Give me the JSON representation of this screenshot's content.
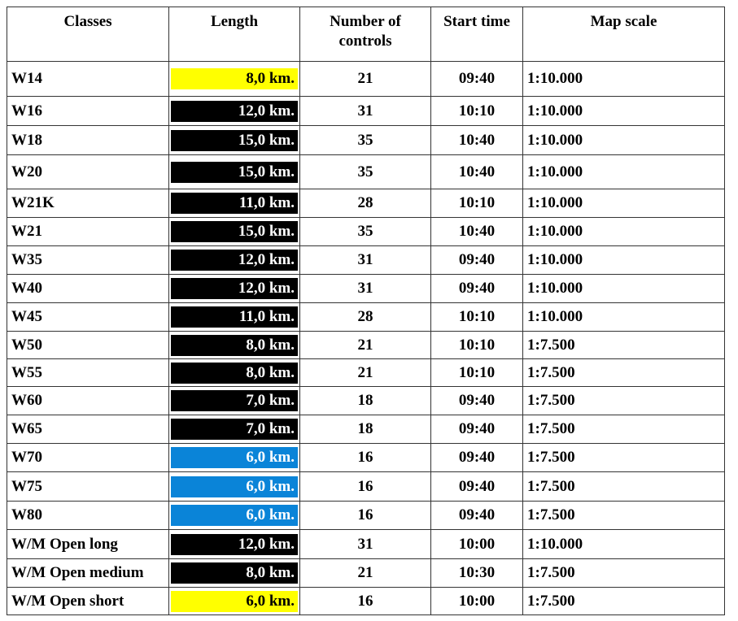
{
  "headers": [
    "Classes",
    "Length",
    "Number of controls",
    "Start time",
    "Map scale"
  ],
  "colors": {
    "yellow": "#ffff00",
    "black": "#000000",
    "blue": "#0a84d8"
  },
  "rows": [
    {
      "cls": "W14",
      "len": "8,0 km.",
      "color": "yellow",
      "n": "21",
      "t": "09:40",
      "s": "1:10.000"
    },
    {
      "cls": "W16",
      "len": "12,0 km.",
      "color": "black",
      "n": "31",
      "t": "10:10",
      "s": "1:10.000"
    },
    {
      "cls": "W18",
      "len": "15,0 km.",
      "color": "black",
      "n": "35",
      "t": "10:40",
      "s": "1:10.000"
    },
    {
      "cls": "W20",
      "len": "15,0 km.",
      "color": "black",
      "n": "35",
      "t": "10:40",
      "s": "1:10.000"
    },
    {
      "cls": "W21K",
      "len": "11,0 km.",
      "color": "black",
      "n": "28",
      "t": "10:10",
      "s": "1:10.000"
    },
    {
      "cls": "W21",
      "len": "15,0 km.",
      "color": "black",
      "n": "35",
      "t": "10:40",
      "s": "1:10.000"
    },
    {
      "cls": "W35",
      "len": "12,0 km.",
      "color": "black",
      "n": "31",
      "t": "09:40",
      "s": "1:10.000"
    },
    {
      "cls": "W40",
      "len": "12,0 km.",
      "color": "black",
      "n": "31",
      "t": "09:40",
      "s": "1:10.000"
    },
    {
      "cls": "W45",
      "len": "11,0 km.",
      "color": "black",
      "n": "28",
      "t": "10:10",
      "s": "1:10.000"
    },
    {
      "cls": "W50",
      "len": "8,0 km.",
      "color": "black",
      "n": "21",
      "t": "10:10",
      "s": "1:7.500"
    },
    {
      "cls": "W55",
      "len": "8,0 km.",
      "color": "black",
      "n": "21",
      "t": "10:10",
      "s": "1:7.500"
    },
    {
      "cls": "W60",
      "len": "7,0 km.",
      "color": "black",
      "n": "18",
      "t": "09:40",
      "s": "1:7.500"
    },
    {
      "cls": "W65",
      "len": "7,0 km.",
      "color": "black",
      "n": "18",
      "t": "09:40",
      "s": "1:7.500"
    },
    {
      "cls": "W70",
      "len": "6,0 km.",
      "color": "blue",
      "n": "16",
      "t": "09:40",
      "s": "1:7.500"
    },
    {
      "cls": "W75",
      "len": "6,0 km.",
      "color": "blue",
      "n": "16",
      "t": "09:40",
      "s": "1:7.500"
    },
    {
      "cls": "W80",
      "len": "6,0 km.",
      "color": "blue",
      "n": "16",
      "t": "09:40",
      "s": "1:7.500"
    },
    {
      "cls": "W/M Open long",
      "len": "12,0 km.",
      "color": "black",
      "n": "31",
      "t": "10:00",
      "s": "1:10.000"
    },
    {
      "cls": "W/M Open medium",
      "len": "8,0 km.",
      "color": "black",
      "n": "21",
      "t": "10:30",
      "s": "1:7.500"
    },
    {
      "cls": "W/M Open short",
      "len": "6,0 km.",
      "color": "yellow",
      "n": "16",
      "t": "10:00",
      "s": "1:7.500"
    }
  ]
}
